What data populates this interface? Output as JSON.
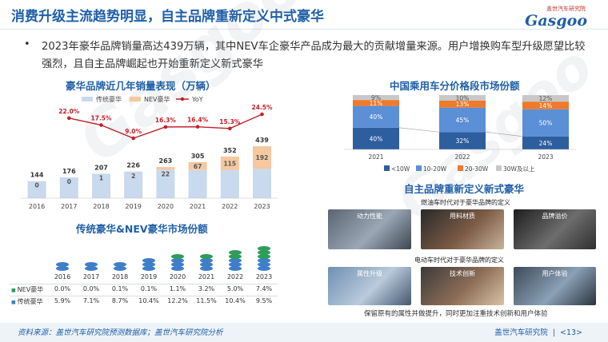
{
  "header": {
    "title": "消费升级主流趋势明显，自主品牌重新定义中式豪华",
    "logo_top": "盖世汽车研究院",
    "logo_main": "Gasgoo"
  },
  "intro": {
    "bullet": "•",
    "text": "2023年豪华品牌销量高达439万辆，其中NEV车企豪华产品成为最大的贡献增量来源。用户增换购车型升级愿望比较强烈，且自主品牌崛起也开始重新定义新式豪华"
  },
  "watermark": "Gasgoo",
  "chart_data": [
    {
      "type": "bar",
      "title": "豪华品牌近几年销量表现（万辆）",
      "categories": [
        "2016",
        "2017",
        "2018",
        "2019",
        "2020",
        "2021",
        "2022",
        "2023"
      ],
      "series": [
        {
          "name": "传统豪华",
          "values": [
            144,
            176,
            206,
            224,
            241,
            238,
            237,
            247
          ]
        },
        {
          "name": "NEV豪华",
          "values": [
            0,
            0,
            1,
            2,
            22,
            67,
            115,
            192
          ]
        },
        {
          "name": "YoY",
          "values": [
            null,
            22.0,
            17.5,
            9.0,
            16.3,
            16.4,
            15.3,
            24.5
          ]
        }
      ],
      "totals": [
        144,
        176,
        207,
        226,
        263,
        305,
        352,
        439
      ],
      "value_labels": [
        "0",
        "0",
        "1",
        "2",
        "22",
        "67",
        "115",
        "192"
      ],
      "yoy_labels": [
        "",
        "22.0%",
        "17.5%",
        "9.0%",
        "16.3%",
        "16.4%",
        "15.3%",
        "24.5%"
      ],
      "colors": {
        "传统豪华": "#c9d9ee",
        "NEV豪华": "#f5c8a0",
        "YoY": "#c0202a"
      },
      "legend": "top"
    },
    {
      "type": "bar",
      "title": "中国乘用车分价格段市场份额",
      "categories": [
        "2021",
        "2022",
        "2023"
      ],
      "series": [
        {
          "name": "<10W",
          "values": [
            40,
            32,
            24
          ]
        },
        {
          "name": "10-20W",
          "values": [
            40,
            45,
            50
          ]
        },
        {
          "name": "20-30W",
          "values": [
            11,
            13,
            14
          ]
        },
        {
          "name": "30W及以上",
          "values": [
            9,
            10,
            12
          ]
        }
      ],
      "value_labels": [
        [
          "40%",
          "32%",
          "24%"
        ],
        [
          "40%",
          "45%",
          "50%"
        ],
        [
          "11%",
          "13%",
          "14%"
        ],
        [
          "9%",
          "10%",
          "12%"
        ]
      ],
      "colors": {
        "<10W": "#2d5e9e",
        "10-20W": "#5b8fd6",
        "20-30W": "#ef7a2a",
        "30W及以上": "#c8c8c8"
      },
      "stacked": true,
      "legend": "bottom"
    },
    {
      "type": "table",
      "title": "传统豪华&NEV豪华市场份额",
      "columns": [
        "2016",
        "2017",
        "2018",
        "2019",
        "2020",
        "2021",
        "2022",
        "2023"
      ],
      "rows": [
        {
          "name": "NEV豪华",
          "values": [
            "0.0%",
            "0.0%",
            "0.1%",
            "0.1%",
            "1.1%",
            "3.2%",
            "5.0%",
            "7.4%"
          ]
        },
        {
          "name": "传统豪华",
          "values": [
            "5.9%",
            "7.1%",
            "8.7%",
            "10.4%",
            "12.2%",
            "11.5%",
            "10.4%",
            "9.5%"
          ]
        }
      ],
      "colors": {
        "NEV豪华": "#2e9d5a",
        "传统豪华": "#3f7fca"
      }
    }
  ],
  "redefine": {
    "title": "自主品牌重新定义新式豪华",
    "fuel_caption": "燃油车时代对于豪华品牌的定义",
    "fuel_items": [
      "动力性能",
      "用料材质",
      "品牌溢价"
    ],
    "ev_caption": "电动车时代对于豪华品牌的定义",
    "ev_items": [
      "属性升级",
      "技术创新",
      "用户体验"
    ],
    "footer_caption": "保留原有的属性并做提升，同时更加注重技术创新和用户体验"
  },
  "footer": {
    "source": "资料来源：盖世汽车研究院预测数据库；盖世汽车研究院分析",
    "brand": "盖世汽车研究院",
    "separator": "|",
    "page": "<13>"
  }
}
